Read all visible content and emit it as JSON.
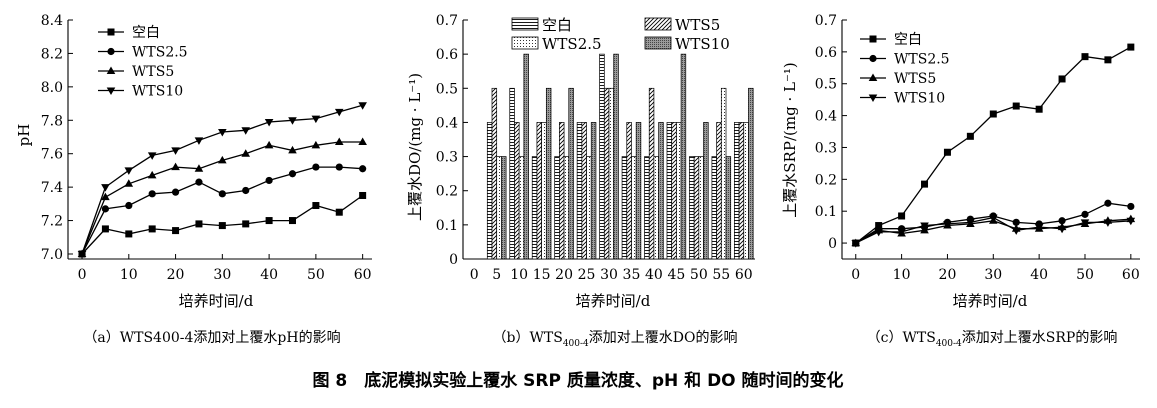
{
  "figure_caption": "图 8　底泥模拟实验上覆水 SRP 质量浓度、pH 和 DO 随时间的变化",
  "chart_data": [
    {
      "id": "a",
      "type": "line",
      "caption": "（a）WTS400-4添加对上覆水pH的影响",
      "xlabel": "培养时间/d",
      "ylabel": "pH",
      "xlim": [
        -3,
        62
      ],
      "ylim": [
        6.97,
        8.4
      ],
      "xticks": [
        0,
        10,
        20,
        30,
        40,
        50,
        60
      ],
      "xtick_labels": [
        "0",
        "10",
        "20",
        "30",
        "40",
        "50",
        "60"
      ],
      "yticks": [
        7.0,
        7.2,
        7.4,
        7.6,
        7.8,
        8.0,
        8.2,
        8.4
      ],
      "ytick_labels": [
        "7.0",
        "7.2",
        "7.4",
        "7.6",
        "7.8",
        "8.0",
        "8.2",
        "8.4"
      ],
      "x": [
        0,
        5,
        10,
        15,
        20,
        25,
        30,
        35,
        40,
        45,
        50,
        55,
        60
      ],
      "legend_position": "top-left",
      "series": [
        {
          "name": "空白",
          "marker": "square",
          "values": [
            7.0,
            7.15,
            7.12,
            7.15,
            7.14,
            7.18,
            7.17,
            7.18,
            7.2,
            7.2,
            7.29,
            7.25,
            7.35
          ]
        },
        {
          "name": "WTS2.5",
          "marker": "circle",
          "values": [
            7.0,
            7.27,
            7.29,
            7.36,
            7.37,
            7.43,
            7.36,
            7.38,
            7.44,
            7.48,
            7.52,
            7.52,
            7.51
          ]
        },
        {
          "name": "WTS5",
          "marker": "triangle-up",
          "values": [
            7.0,
            7.34,
            7.42,
            7.47,
            7.52,
            7.51,
            7.56,
            7.6,
            7.65,
            7.62,
            7.65,
            7.67,
            7.67
          ]
        },
        {
          "name": "WTS10",
          "marker": "triangle-down",
          "values": [
            7.0,
            7.4,
            7.5,
            7.59,
            7.62,
            7.68,
            7.73,
            7.74,
            7.79,
            7.8,
            7.81,
            7.85,
            7.89
          ]
        }
      ]
    },
    {
      "id": "b",
      "type": "bar",
      "caption_prefix": "（b）WTS",
      "caption_sub": "400-4",
      "caption_suffix": "添加对上覆水DO的影响",
      "xlabel": "培养时间/d",
      "ylabel": "上覆水DO/(mg · L⁻¹)",
      "ylim": [
        0,
        0.7
      ],
      "yticks": [
        0,
        0.1,
        0.2,
        0.3,
        0.4,
        0.5,
        0.6,
        0.7
      ],
      "ytick_labels": [
        "0",
        "0.1",
        "0.2",
        "0.3",
        "0.4",
        "0.5",
        "0.6",
        "0.7"
      ],
      "categories": [
        "0",
        "5",
        "10",
        "15",
        "20",
        "25",
        "30",
        "35",
        "40",
        "45",
        "50",
        "55",
        "60"
      ],
      "legend_position": "top",
      "series": [
        {
          "name": "空白",
          "pattern": "horizontal-lines",
          "values": [
            null,
            0.4,
            0.5,
            0.3,
            0.3,
            0.4,
            0.6,
            0.3,
            0.3,
            0.4,
            0.3,
            0.3,
            0.4
          ]
        },
        {
          "name": "WTS5",
          "pattern": "diagonal-lines",
          "values": [
            null,
            0.5,
            0.4,
            0.4,
            0.4,
            0.4,
            0.5,
            0.4,
            0.5,
            0.4,
            0.3,
            0.4,
            0.4
          ]
        },
        {
          "name": "WTS2.5",
          "pattern": "dots",
          "values": [
            null,
            0.3,
            0.3,
            0.4,
            0.3,
            0.3,
            0.5,
            0.3,
            0.3,
            0.4,
            0.3,
            0.5,
            0.4
          ]
        },
        {
          "name": "WTS10",
          "pattern": "dense-dots",
          "values": [
            null,
            0.3,
            0.6,
            0.5,
            0.5,
            0.4,
            0.6,
            0.4,
            0.4,
            0.6,
            0.4,
            0.3,
            0.5
          ]
        }
      ]
    },
    {
      "id": "c",
      "type": "line",
      "caption_prefix": "（c）WTS",
      "caption_sub": "400-4",
      "caption_suffix": "添加对上覆水SRP的影响",
      "xlabel": "培养时间/d",
      "ylabel": "上覆水SRP/(mg · L⁻¹)",
      "xlim": [
        -3,
        62
      ],
      "ylim": [
        -0.05,
        0.7
      ],
      "xticks": [
        0,
        10,
        20,
        30,
        40,
        50,
        60
      ],
      "xtick_labels": [
        "0",
        "10",
        "20",
        "30",
        "40",
        "50",
        "60"
      ],
      "yticks": [
        0,
        0.1,
        0.2,
        0.3,
        0.4,
        0.5,
        0.6,
        0.7
      ],
      "ytick_labels": [
        "0",
        "0.1",
        "0.2",
        "0.3",
        "0.4",
        "0.5",
        "0.6",
        "0.7"
      ],
      "x": [
        0,
        5,
        10,
        15,
        20,
        25,
        30,
        35,
        40,
        45,
        50,
        55,
        60
      ],
      "legend_position": "top-left",
      "series": [
        {
          "name": "空白",
          "marker": "square",
          "values": [
            0.0,
            0.055,
            0.085,
            0.185,
            0.285,
            0.335,
            0.405,
            0.43,
            0.42,
            0.515,
            0.585,
            0.575,
            0.615
          ]
        },
        {
          "name": "WTS2.5",
          "marker": "circle",
          "values": [
            0.0,
            0.045,
            0.045,
            0.05,
            0.065,
            0.075,
            0.085,
            0.065,
            0.06,
            0.07,
            0.09,
            0.125,
            0.115
          ]
        },
        {
          "name": "WTS5",
          "marker": "triangle-up",
          "values": [
            0.0,
            0.04,
            0.03,
            0.04,
            0.055,
            0.06,
            0.07,
            0.045,
            0.045,
            0.05,
            0.06,
            0.07,
            0.075
          ]
        },
        {
          "name": "WTS10",
          "marker": "triangle-down",
          "values": [
            0.0,
            0.035,
            0.035,
            0.055,
            0.06,
            0.065,
            0.08,
            0.04,
            0.05,
            0.045,
            0.065,
            0.065,
            0.07
          ]
        }
      ]
    }
  ]
}
